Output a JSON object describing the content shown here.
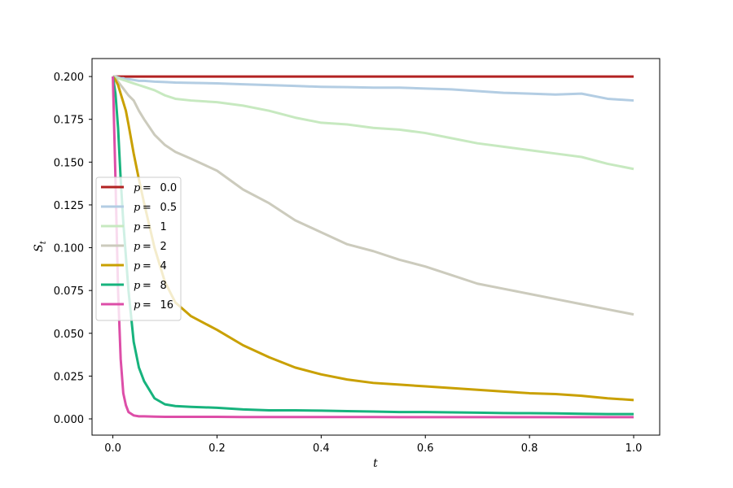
{
  "chart_data": {
    "type": "line",
    "title": "",
    "xlabel": "t",
    "ylabel": "S_t",
    "xlim": [
      -0.04,
      1.05
    ],
    "ylim": [
      -0.0095,
      0.2105
    ],
    "xticks": [
      0.0,
      0.2,
      0.4,
      0.6,
      0.8,
      1.0
    ],
    "xtick_labels": [
      "0.0",
      "0.2",
      "0.4",
      "0.6",
      "0.8",
      "1.0"
    ],
    "yticks": [
      0.0,
      0.025,
      0.05,
      0.075,
      0.1,
      0.125,
      0.15,
      0.175,
      0.2
    ],
    "ytick_labels": [
      "0.000",
      "0.025",
      "0.050",
      "0.075",
      "0.100",
      "0.125",
      "0.150",
      "0.175",
      "0.200"
    ],
    "grid": false,
    "legend_position": "center-left",
    "x": [
      0,
      0.005,
      0.01,
      0.015,
      0.02,
      0.025,
      0.03,
      0.04,
      0.05,
      0.06,
      0.08,
      0.1,
      0.12,
      0.15,
      0.2,
      0.25,
      0.3,
      0.35,
      0.4,
      0.45,
      0.5,
      0.55,
      0.6,
      0.65,
      0.7,
      0.75,
      0.8,
      0.85,
      0.9,
      0.95,
      1.0
    ],
    "series": [
      {
        "name": "p =  0.0",
        "legend_p": "p",
        "legend_value": "0.0",
        "color": "#b22222",
        "values": [
          0.2,
          0.2,
          0.2,
          0.2,
          0.2,
          0.2,
          0.2,
          0.2,
          0.2,
          0.2,
          0.2,
          0.2,
          0.2,
          0.2,
          0.2,
          0.2,
          0.2,
          0.2,
          0.2,
          0.2,
          0.2,
          0.2,
          0.2,
          0.2,
          0.2,
          0.2,
          0.2,
          0.2,
          0.2,
          0.2,
          0.2
        ]
      },
      {
        "name": "p =  0.5",
        "legend_p": "p",
        "legend_value": "0.5",
        "color": "#b3cde3",
        "values": [
          0.2,
          0.2,
          0.1995,
          0.199,
          0.199,
          0.1985,
          0.1985,
          0.198,
          0.1975,
          0.1975,
          0.197,
          0.1968,
          0.1965,
          0.1963,
          0.196,
          0.1955,
          0.195,
          0.1945,
          0.194,
          0.1938,
          0.1935,
          0.1935,
          0.193,
          0.1925,
          0.1915,
          0.1905,
          0.19,
          0.1895,
          0.19,
          0.187,
          0.186
        ]
      },
      {
        "name": "p =  1",
        "legend_p": "p",
        "legend_value": "1",
        "color": "#c7e9c0",
        "values": [
          0.2,
          0.1995,
          0.199,
          0.1985,
          0.198,
          0.1975,
          0.197,
          0.196,
          0.195,
          0.194,
          0.192,
          0.189,
          0.187,
          0.186,
          0.185,
          0.183,
          0.18,
          0.176,
          0.173,
          0.172,
          0.17,
          0.169,
          0.167,
          0.164,
          0.161,
          0.159,
          0.157,
          0.155,
          0.153,
          0.149,
          0.146
        ]
      },
      {
        "name": "p =  2",
        "legend_p": "p",
        "legend_value": "2",
        "color": "#cccbbd",
        "values": [
          0.2,
          0.199,
          0.197,
          0.195,
          0.193,
          0.191,
          0.189,
          0.186,
          0.18,
          0.175,
          0.166,
          0.16,
          0.156,
          0.152,
          0.145,
          0.134,
          0.126,
          0.116,
          0.109,
          0.102,
          0.098,
          0.093,
          0.089,
          0.084,
          0.079,
          0.076,
          0.073,
          0.07,
          0.067,
          0.064,
          0.061
        ]
      },
      {
        "name": "p =  4",
        "legend_p": "p",
        "legend_value": "4",
        "color": "#c9a000",
        "values": [
          0.2,
          0.198,
          0.195,
          0.19,
          0.185,
          0.18,
          0.172,
          0.155,
          0.14,
          0.126,
          0.1,
          0.08,
          0.068,
          0.06,
          0.052,
          0.043,
          0.036,
          0.03,
          0.026,
          0.023,
          0.021,
          0.02,
          0.019,
          0.018,
          0.017,
          0.016,
          0.015,
          0.0145,
          0.0135,
          0.012,
          0.011
        ]
      },
      {
        "name": "p =  8",
        "legend_p": "p",
        "legend_value": "8",
        "color": "#17b37d",
        "values": [
          0.2,
          0.19,
          0.17,
          0.14,
          0.115,
          0.095,
          0.075,
          0.045,
          0.03,
          0.022,
          0.012,
          0.0085,
          0.0075,
          0.007,
          0.0065,
          0.0055,
          0.005,
          0.005,
          0.0048,
          0.0045,
          0.0043,
          0.004,
          0.004,
          0.0038,
          0.0036,
          0.0034,
          0.0033,
          0.0032,
          0.003,
          0.0028,
          0.0028
        ]
      },
      {
        "name": "p =  16",
        "legend_p": "p",
        "legend_value": "16",
        "color": "#dd4ea8",
        "values": [
          0.2,
          0.14,
          0.075,
          0.035,
          0.015,
          0.008,
          0.004,
          0.002,
          0.0015,
          0.0015,
          0.0013,
          0.0012,
          0.0012,
          0.0012,
          0.0012,
          0.0011,
          0.0011,
          0.0011,
          0.0011,
          0.0011,
          0.0011,
          0.001,
          0.001,
          0.001,
          0.001,
          0.001,
          0.001,
          0.001,
          0.001,
          0.001,
          0.001
        ]
      }
    ]
  }
}
